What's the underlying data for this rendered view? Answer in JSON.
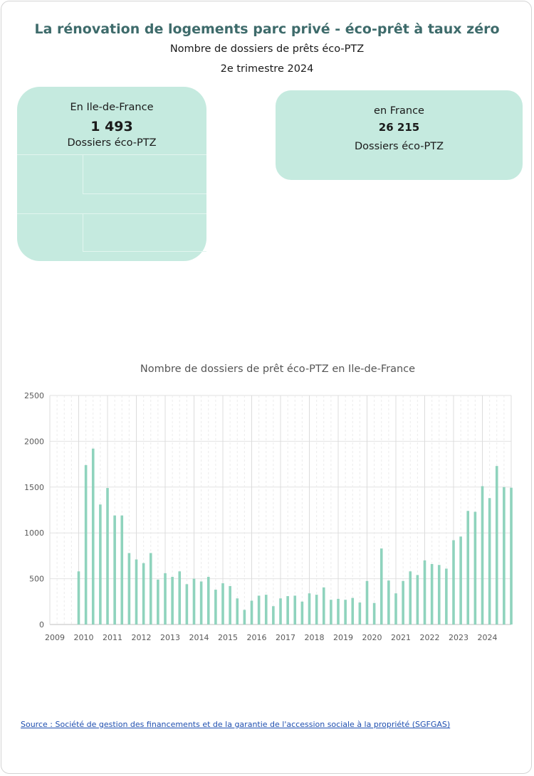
{
  "header": {
    "title": "La rénovation de logements parc privé - éco-prêt à taux zéro",
    "subtitle": "Nombre de dossiers de prêts éco-PTZ",
    "period": "2e trimestre 2024"
  },
  "cards": [
    {
      "label": "En Ile-de-France",
      "value": "1 493",
      "unit": "Dossiers éco-PTZ"
    },
    {
      "label": "en France",
      "value": "26 215",
      "unit": "Dossiers éco-PTZ"
    }
  ],
  "colors": {
    "bar": "#8fd3bd",
    "card": "#c5eadf",
    "title": "#3e6b6b",
    "link": "#1f4fb0"
  },
  "chart_data": {
    "type": "bar",
    "title": "Nombre de dossiers de prêt éco-PTZ en Ile-de-France",
    "xlabel": "",
    "ylabel": "",
    "ylim": [
      0,
      2500
    ],
    "yticks": [
      "0",
      "500",
      "1000",
      "1500",
      "2000",
      "2500"
    ],
    "xticks": [
      "2009",
      "2010",
      "2011",
      "2012",
      "2013",
      "2014",
      "2015",
      "2016",
      "2017",
      "2018",
      "2019",
      "2020",
      "2021",
      "2022",
      "2023",
      "2024"
    ],
    "grid": true,
    "x_start_year": 2009,
    "values": [
      580,
      1740,
      1920,
      1310,
      1490,
      1190,
      1190,
      780,
      710,
      670,
      780,
      490,
      560,
      520,
      580,
      440,
      500,
      470,
      520,
      380,
      450,
      420,
      285,
      160,
      260,
      315,
      325,
      200,
      285,
      310,
      315,
      250,
      340,
      325,
      405,
      270,
      280,
      270,
      290,
      240,
      475,
      235,
      830,
      480,
      340,
      475,
      580,
      540,
      700,
      660,
      650,
      610,
      920,
      960,
      1240,
      1230,
      1510,
      1380,
      1730,
      1500,
      1493
    ]
  },
  "source": {
    "text": "Source : Société de gestion des financements et de la garantie de l'accession sociale à la propriété (SGFGAS)"
  }
}
